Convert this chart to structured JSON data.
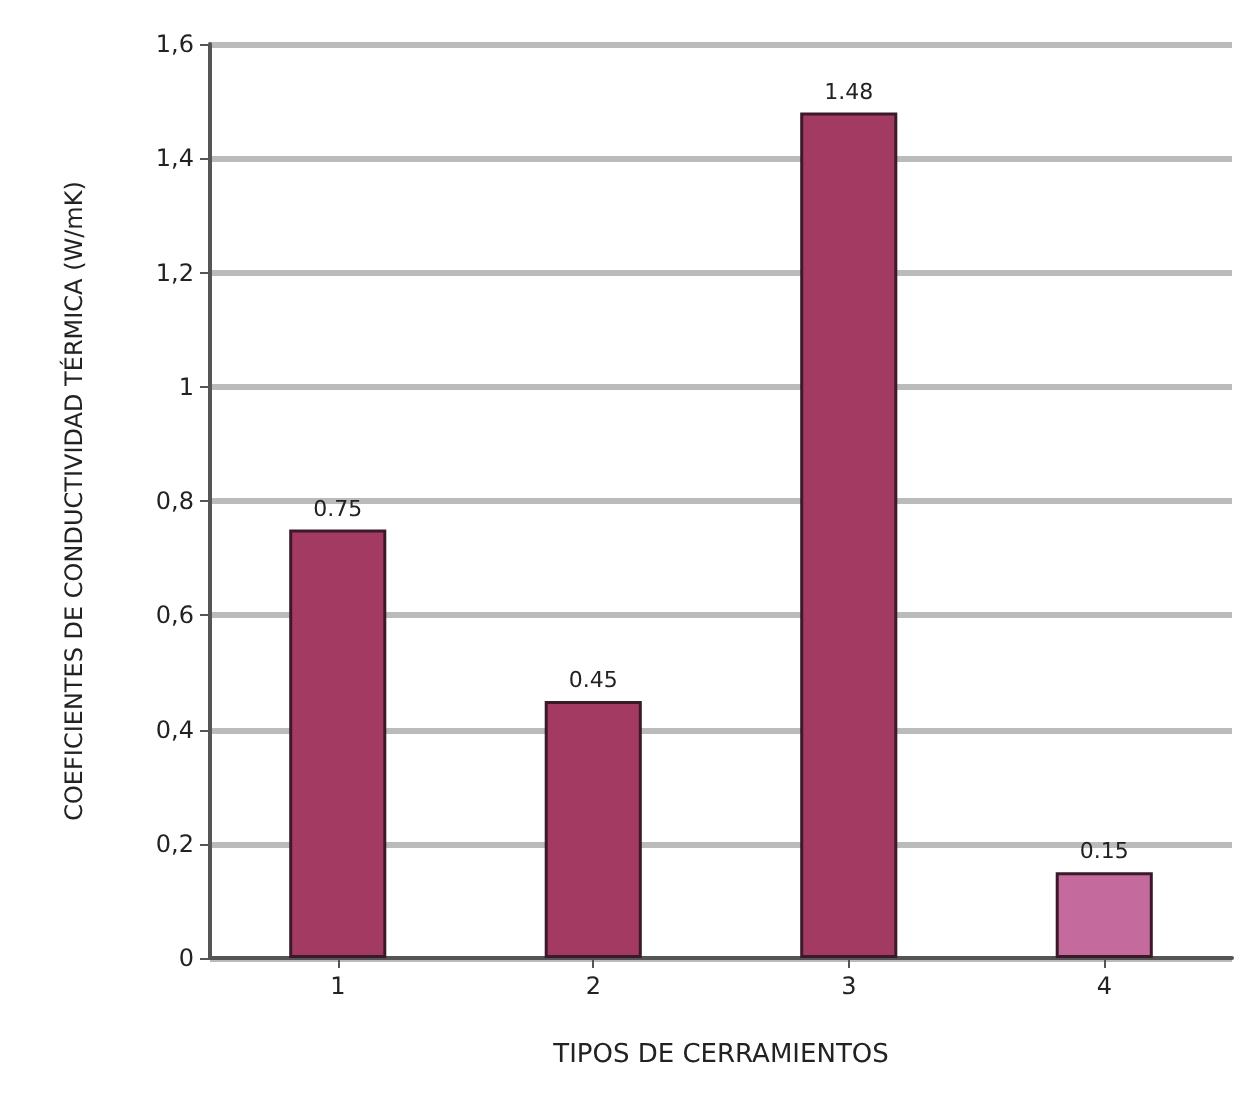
{
  "chart_data": {
    "type": "bar",
    "xlabel": "TIPOS DE CERRAMIENTOS",
    "ylabel": "COEFICIENTES DE CONDUCTIVIDAD TÉRMICA (W/mK)",
    "categories": [
      "1",
      "2",
      "3",
      "4"
    ],
    "values": [
      0.75,
      0.45,
      1.48,
      0.15
    ],
    "colors": [
      "#a33a62",
      "#a33a62",
      "#a33a62",
      "#c46a9c"
    ],
    "value_labels": [
      "0.75",
      "0.45",
      "1.48",
      "0.15"
    ],
    "ylim": [
      0,
      1.6
    ],
    "yticks": [
      0,
      {
        "value": 0.2,
        "label": "0,2"
      },
      {
        "value": 0.4,
        "label": "0,4"
      },
      {
        "value": 0.6,
        "label": "0,6"
      },
      {
        "value": 0.8,
        "label": "0,8"
      },
      1,
      {
        "value": 1.2,
        "label": "1,2"
      },
      {
        "value": 1.4,
        "label": "1,4"
      },
      {
        "value": 1.6,
        "label": "1,6"
      }
    ],
    "grid": "y"
  }
}
